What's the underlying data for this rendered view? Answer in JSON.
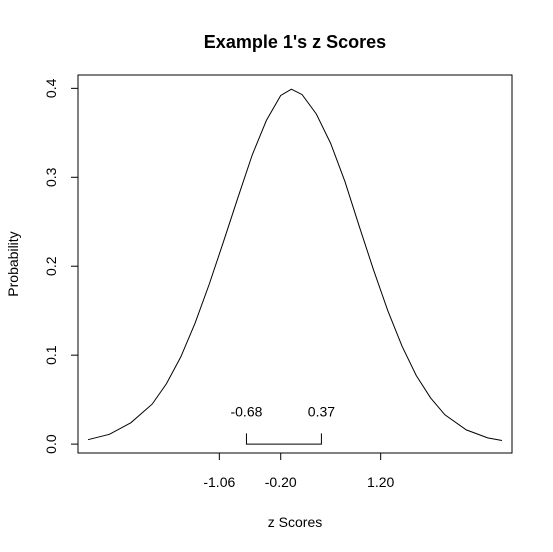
{
  "chart_data": {
    "type": "line",
    "title": "Example 1's z Scores",
    "xlabel": "z Scores",
    "ylabel": "Probability",
    "xlim": [
      -3.04,
      3.04
    ],
    "ylim": [
      -0.01,
      0.415
    ],
    "x_ticks": [
      -1.06,
      -0.2,
      1.2
    ],
    "x_tick_labels": [
      "-1.06",
      "-0.20",
      "1.20"
    ],
    "y_ticks": [
      0.0,
      0.1,
      0.2,
      0.3,
      0.4
    ],
    "y_tick_labels": [
      "0.0",
      "0.1",
      "0.2",
      "0.3",
      "0.4"
    ],
    "grid": false,
    "series": [
      {
        "x": [
          -2.9,
          -2.6,
          -2.3,
          -2.0,
          -1.8,
          -1.6,
          -1.4,
          -1.2,
          -1.0,
          -0.8,
          -0.6,
          -0.4,
          -0.2,
          -0.05,
          0.1,
          0.3,
          0.5,
          0.7,
          0.9,
          1.1,
          1.3,
          1.5,
          1.7,
          1.9,
          2.1,
          2.4,
          2.7,
          2.9
        ],
        "y": [
          0.005,
          0.011,
          0.024,
          0.045,
          0.068,
          0.098,
          0.136,
          0.18,
          0.228,
          0.277,
          0.325,
          0.364,
          0.392,
          0.399,
          0.393,
          0.371,
          0.338,
          0.295,
          0.245,
          0.196,
          0.15,
          0.11,
          0.077,
          0.052,
          0.033,
          0.016,
          0.007,
          0.004
        ]
      }
    ],
    "annotations": [
      {
        "text": "-0.68",
        "x": -0.68,
        "y": 0.031
      },
      {
        "text": "0.37",
        "x": 0.37,
        "y": 0.031
      }
    ],
    "bracket": {
      "x_start": -0.68,
      "x_end": 0.37,
      "y": 0.0,
      "y_top": 0.012
    }
  }
}
